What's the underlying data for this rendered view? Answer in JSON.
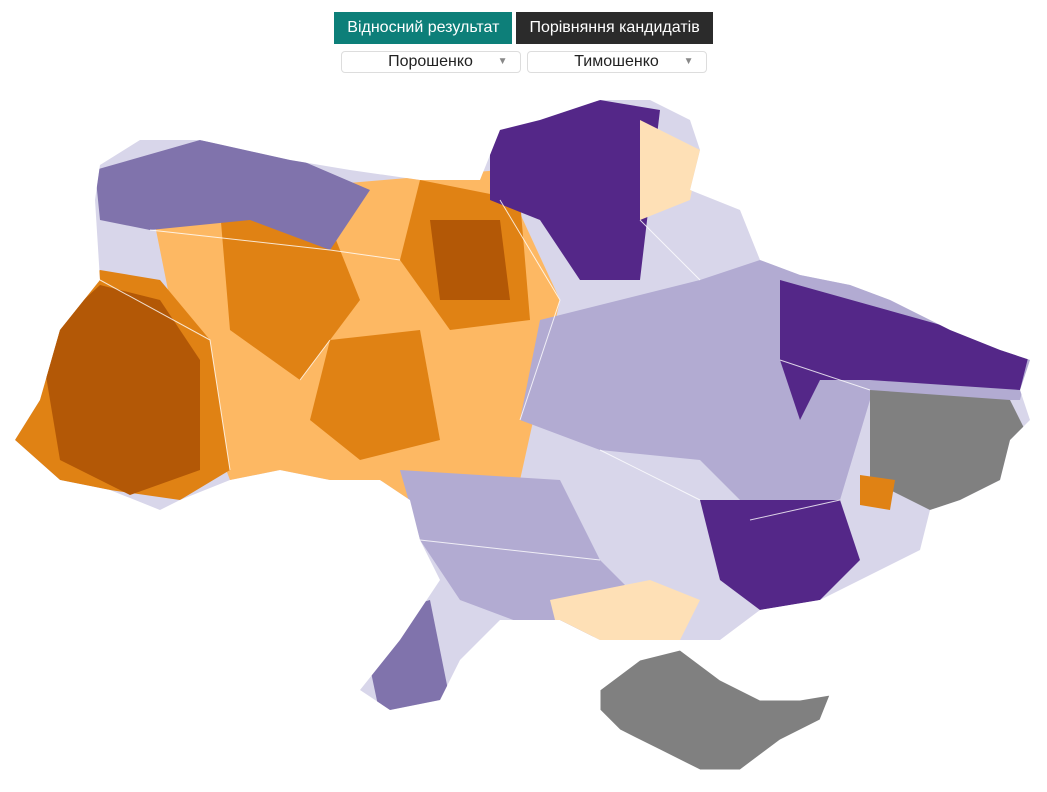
{
  "tabs": [
    "Відносний результат",
    "Порівняння кандидатів"
  ],
  "selects": [
    "Порошенко",
    "Тимошенко"
  ]
}
